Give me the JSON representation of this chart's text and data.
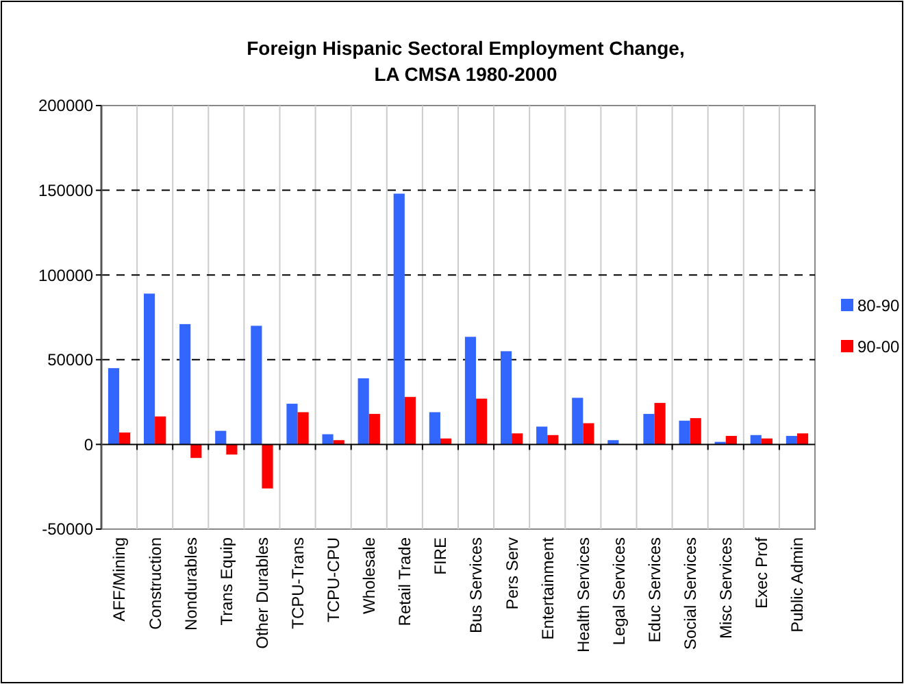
{
  "chart_data": {
    "type": "bar",
    "title": "Foreign Hispanic Sectoral Employment Change, LA CMSA 1980-2000",
    "categories": [
      "AFF/Mining",
      "Construction",
      "Nondurables",
      "Trans Equip",
      "Other Durables",
      "TCPU-Trans",
      "TCPU-CPU",
      "Wholesale",
      "Retail Trade",
      "FIRE",
      "Bus Services",
      "Pers Serv",
      "Entertainment",
      "Health Services",
      "Legal Services",
      "Educ Services",
      "Social Services",
      "Misc Services",
      "Exec Prof",
      "Public Admin"
    ],
    "series": [
      {
        "name": "80-90",
        "color": "#3366ff",
        "values": [
          45000,
          89000,
          71000,
          8000,
          70000,
          24000,
          6000,
          39000,
          148000,
          19000,
          63500,
          55000,
          10500,
          27500,
          2500,
          18000,
          14000,
          1500,
          5500,
          5000
        ]
      },
      {
        "name": "90-00",
        "color": "#ff0000",
        "values": [
          7000,
          16500,
          -8000,
          -6000,
          -26000,
          19000,
          2500,
          18000,
          28000,
          3500,
          27000,
          6500,
          5500,
          12500,
          0,
          24500,
          15500,
          5000,
          3500,
          6500
        ]
      }
    ],
    "ylim": [
      -50000,
      200000
    ],
    "yticks": [
      -50000,
      0,
      50000,
      100000,
      150000,
      200000
    ],
    "grid": true,
    "legend": "right"
  }
}
